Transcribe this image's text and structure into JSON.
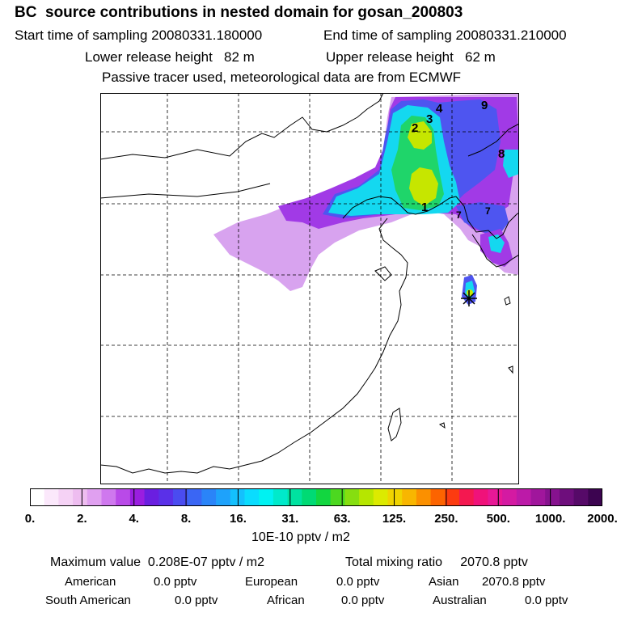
{
  "header": {
    "title": "BC  source contributions in nested domain for gosan_200803",
    "start_time": "Start time of sampling 20080331.180000",
    "end_time": "End time of sampling 20080331.210000",
    "lower_release": "Lower release height   82 m",
    "upper_release": "Upper release height   62 m",
    "tracer_note": "Passive tracer used, meteorological data are from ECMWF"
  },
  "map": {
    "grid": true,
    "receptor_marker": "star-icon",
    "source_labels": [
      "1",
      "2",
      "3",
      "4",
      "7",
      "7",
      "8",
      "9"
    ]
  },
  "colorbar": {
    "tick_labels": [
      "0.",
      "2.",
      "4.",
      "8.",
      "16.",
      "31.",
      "63.",
      "125.",
      "250.",
      "500.",
      "1000.",
      "2000."
    ],
    "colors": [
      "#ffffff",
      "#fbe8fb",
      "#f5d2f5",
      "#eebdf0",
      "#e0a0f0",
      "#cf78ee",
      "#b94ae8",
      "#9a1ee0",
      "#6a1fe0",
      "#5a30e8",
      "#4a4cf0",
      "#3a66f4",
      "#2a84f8",
      "#1ea2fb",
      "#14c0fd",
      "#0adcfe",
      "#00f2f2",
      "#00eacb",
      "#00e2a0",
      "#00da74",
      "#12d640",
      "#4cd820",
      "#86de10",
      "#b6e600",
      "#dcea00",
      "#f0d400",
      "#f8b600",
      "#fb9000",
      "#fc6400",
      "#fc3b10",
      "#f41850",
      "#f0127a",
      "#e81896",
      "#d41aa2",
      "#bc1aa8",
      "#a0169c",
      "#86128e",
      "#6e0e7c",
      "#560a68",
      "#3c0450"
    ],
    "units": "10E-10 pptv / m2"
  },
  "summary": {
    "max_value": "Maximum value  0.208E-07 pptv / m2",
    "total_mixing": "Total mixing ratio     2070.8 pptv",
    "american_label": "American",
    "american_val": "0.0 pptv",
    "european_label": "European",
    "european_val": "0.0 pptv",
    "asian_label": "Asian",
    "asian_val": "2070.8 pptv",
    "south_american_label": "South American",
    "south_american_val": "0.0 pptv",
    "african_label": "African",
    "african_val": "0.0 pptv",
    "australian_label": "Australian",
    "australian_val": "0.0 pptv"
  }
}
